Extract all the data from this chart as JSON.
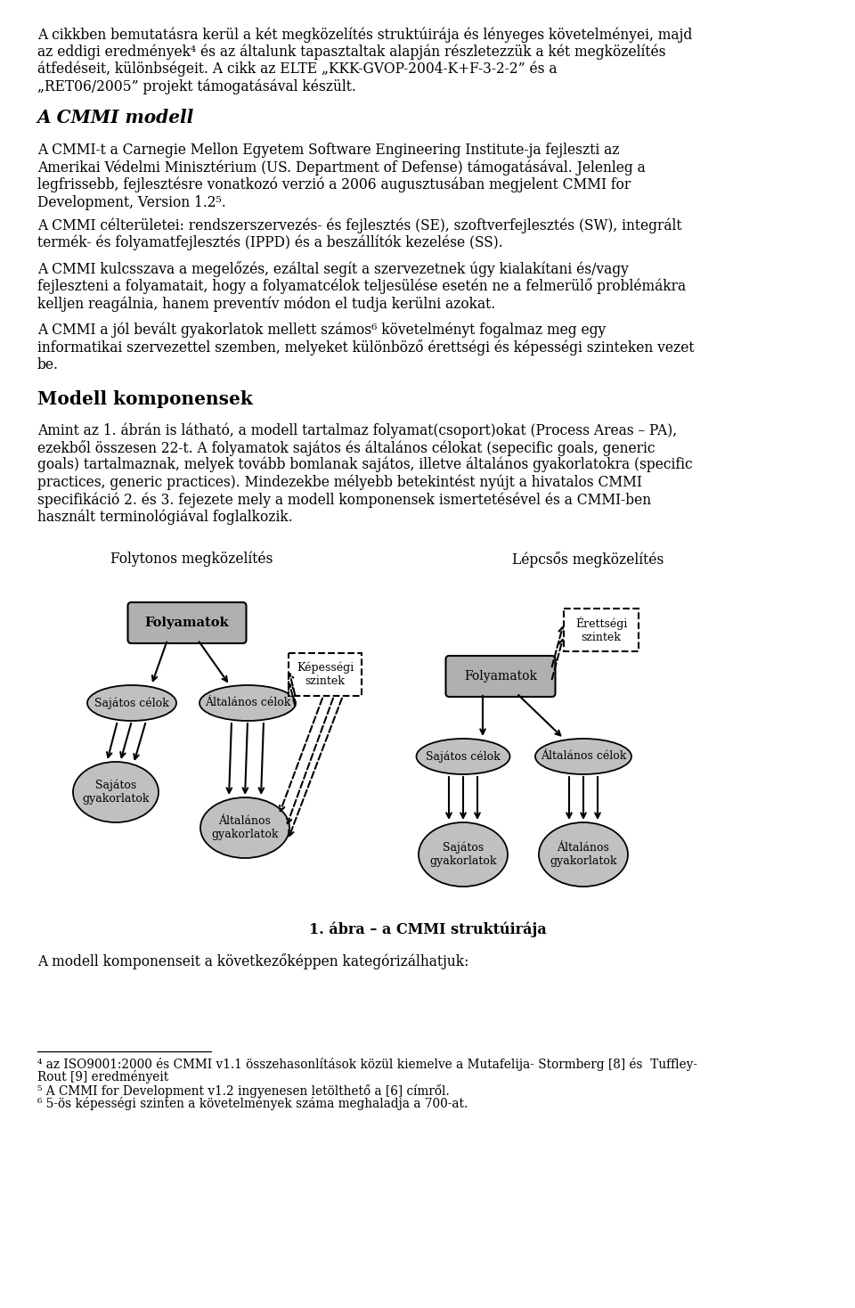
{
  "bg_color": "#ffffff",
  "font_family": "DejaVu Serif",
  "para1_lines": [
    "A cikkben bemutatásra kerül a két megközelítés struktúirája és lényeges követelményei, majd",
    "az eddigi eredmények⁴ és az általunk tapasztaltak alapján részletezzük a két megközelítés",
    "átfedéseit, különbségeit. A cikk az ELTE „KKK-GVOP-2004-K+F-3-2-2” és a",
    "„RET06/2005” projekt támogatásával készült."
  ],
  "heading1": "A CMMI modell",
  "para2_lines": [
    "A CMMI-t a Carnegie Mellon Egyetem Software Engineering Institute-ja fejleszti az",
    "Amerikai Védelmi Minisztérium (US. Department of Defense) támogatásával. Jelenleg a",
    "legfrissebb, fejlesztésre vonatkozó verzió a 2006 augusztusában megjelent CMMI for",
    "Development, Version 1.2⁵."
  ],
  "para3_lines": [
    "A CMMI célterületei: rendszerszervezés- és fejlesztés (SE), szoftverfejlesztés (SW), integrált",
    "termék- és folyamatfejlesztés (IPPD) és a beszállítók kezelése (SS)."
  ],
  "para4_lines": [
    "A CMMI kulcsszava a megelőzés, ezáltal segít a szervezetnek úgy kialakítani és/vagy",
    "fejleszteni a folyamatait, hogy a folyamatcélok teljesülése esetén ne a felmerülő problémákra",
    "kelljen reagálnia, hanem preventív módon el tudja kerülni azokat."
  ],
  "para5_lines": [
    "A CMMI a jól bevált gyakorlatok mellett számos⁶ követelményt fogalmaz meg egy",
    "informatikai szervezettel szemben, melyeket különböző érettségi és képességi szinteken vezet",
    "be."
  ],
  "heading2": "Modell komponensek",
  "para6_lines": [
    "Amint az 1. ábrán is látható, a modell tartalmaz folyamat(csoport)okat (Process Areas – PA),",
    "ezekből összesen 22-t. A folyamatok sajátos és általános célokat (sepecific goals, generic",
    "goals) tartalmaznak, melyek tovább bomlanak sajátos, illetve általános gyakorlatokra (specific",
    "practices, generic practices). Mindezekbe mélyebb betekintést nyújt a hivatalos CMMI",
    "specifikáció 2. és 3. fejezete mely a modell komponensek ismertetésével és a CMMI-ben",
    "használt terminológiával foglalkozik."
  ],
  "fig_caption": "1. ábra – a CMMI struktúirája",
  "para7": "A modell komponenseit a következőképpen kategórizálhatjuk:",
  "footnote4_lines": [
    "⁴ az ISO9001:2000 és CMMI v1.1 összehasonlítások közül kiemelve a Mutafelija- Stormberg [8] és  Tuffley-",
    "Rout [9] eredményeit"
  ],
  "footnote5": "⁵ A CMMI for Development v1.2 ingyenesen letölthető a [6] címről.",
  "footnote6": "⁶ 5-ös képességi szinten a követelmények száma meghaladja a 700-at.",
  "diag_title_left": "Folytonos megközelítés",
  "diag_title_right": "Lépcsős megközelítés",
  "node_folyamatok": "Folyamatok",
  "node_sajatos_celok": "Sajátos célok",
  "node_altalanos_celok": "Általános célok",
  "node_kepessegi": "Képességi\nszintek",
  "node_sajatos_gyak": "Sajátos\ngyakorlatok",
  "node_altalanos_gyak": "Általános\ngyakorlatok",
  "node_erettsegi": "Érettségi\nszintek",
  "node_folyamatok2": "Folyamatok",
  "node_sajatos_celok2": "Sajátos célok",
  "node_altalanos_celok2": "Általános célok",
  "node_sajatos_gyak2": "Sajátos\ngyakorlatok",
  "node_altalanos_gyak2": "Általános\ngyakorlatok",
  "gray_fill": "#c0c0c0",
  "gray_rect_fill": "#b0b0b0",
  "white_fill": "#ffffff"
}
